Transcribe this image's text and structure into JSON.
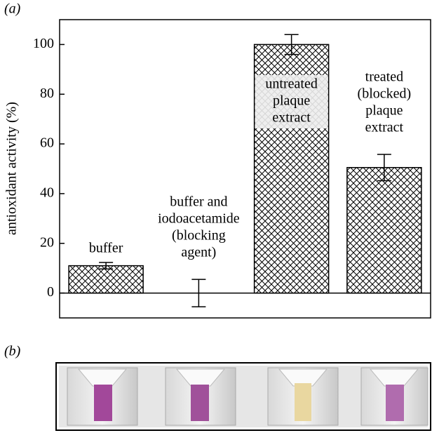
{
  "chart_data": {
    "type": "bar",
    "panel_a": "(a)",
    "panel_b": "(b)",
    "y_label": "antioxidant activity (%)",
    "categories": [
      [
        "buffer"
      ],
      [
        "buffer and",
        "iodoacetamide",
        "(blocking",
        "agent)"
      ],
      [
        "untreated",
        "plaque",
        "extract"
      ],
      [
        "treated",
        "(blocked)",
        "plaque",
        "extract"
      ]
    ],
    "values": [
      11,
      0,
      100,
      50.5
    ],
    "errors": [
      1.3,
      5.5,
      4,
      5.3
    ],
    "color": "#000000",
    "ylim": [
      -10,
      110
    ],
    "yticks": [
      0,
      20,
      40,
      60,
      80,
      100
    ]
  }
}
